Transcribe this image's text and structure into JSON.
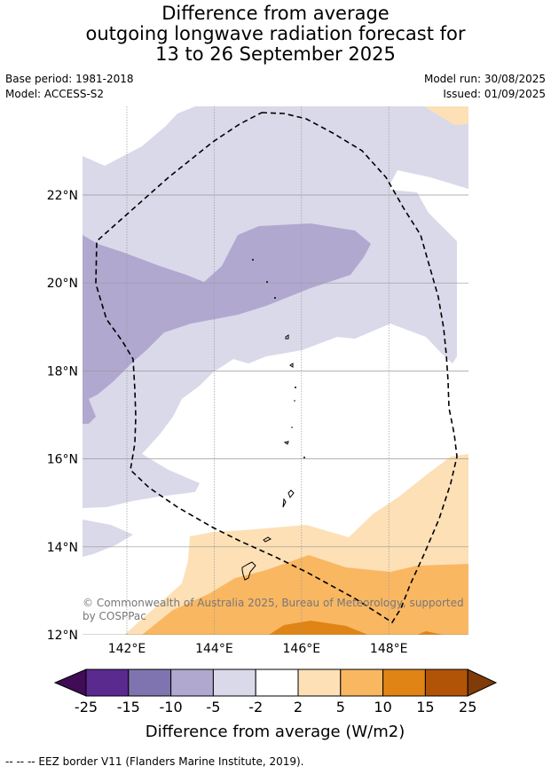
{
  "title": {
    "line1": "Difference from average",
    "line2": "outgoing longwave radiation forecast for",
    "line3": "13 to 26 September 2025"
  },
  "meta": {
    "base_period": "Base period: 1981-2018",
    "model": "Model: ACCESS-S2",
    "model_run": "Model run: 30/08/2025",
    "issued": "Issued: 01/09/2025"
  },
  "map": {
    "lat_labels": [
      "22°N",
      "20°N",
      "18°N",
      "16°N",
      "14°N",
      "12°N"
    ],
    "lon_labels": [
      "142°E",
      "144°E",
      "146°E",
      "148°E"
    ],
    "lat_range": [
      12,
      24
    ],
    "lon_range": [
      141,
      149.7
    ],
    "copyright_line1": "© Commonwealth of Australia 2025, Bureau of Meteorology, supported",
    "copyright_line2": "by COSPPac",
    "border_style": "dashed"
  },
  "colorbar": {
    "ticks": [
      "-25",
      "-15",
      "-10",
      "-5",
      "-2",
      "2",
      "5",
      "10",
      "15",
      "25"
    ],
    "colors": [
      "#3f0c55",
      "#5a2a8f",
      "#8074b0",
      "#b1a8d0",
      "#d9d9ea",
      "#ffffff",
      "#fde0b6",
      "#f9b762",
      "#e08415",
      "#b25407",
      "#7f3b08"
    ],
    "label": "Difference from average (W/m2)"
  },
  "footnote": "--  --  -- EEZ border V11 (Flanders Marine Institute, 2019)."
}
